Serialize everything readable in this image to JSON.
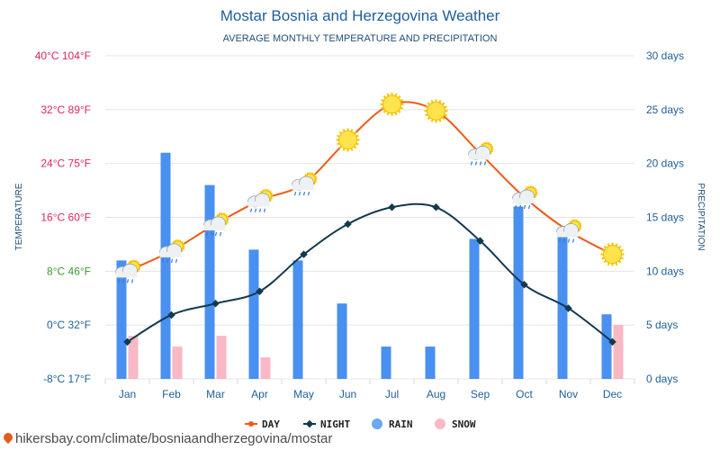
{
  "chart_data": {
    "type": "bar+line",
    "title": "Mostar Bosnia and Herzegovina Weather",
    "subtitle": "AVERAGE MONTHLY TEMPERATURE AND PRECIPITATION",
    "categories": [
      "Jan",
      "Feb",
      "Mar",
      "Apr",
      "May",
      "Jun",
      "Jul",
      "Aug",
      "Sep",
      "Oct",
      "Nov",
      "Dec"
    ],
    "left_axis": {
      "label": "TEMPERATURE",
      "range_c": [
        -8,
        40
      ],
      "ticks": [
        {
          "value": 40,
          "label": "40°C 104°F",
          "color": "#e0245e"
        },
        {
          "value": 32,
          "label": "32°C 89°F",
          "color": "#e0245e"
        },
        {
          "value": 24,
          "label": "24°C 75°F",
          "color": "#e0245e"
        },
        {
          "value": 16,
          "label": "16°C 60°F",
          "color": "#e0245e"
        },
        {
          "value": 8,
          "label": "8°C 46°F",
          "color": "#3a9a2c"
        },
        {
          "value": 0,
          "label": "0°C 32°F",
          "color": "#1f5f99"
        },
        {
          "value": -8,
          "label": "-8°C 17°F",
          "color": "#1f5f99"
        }
      ]
    },
    "right_axis": {
      "label": "PRECIPITATION",
      "range_days": [
        0,
        30
      ],
      "ticks": [
        {
          "value": 30,
          "label": "30 days"
        },
        {
          "value": 25,
          "label": "25 days"
        },
        {
          "value": 20,
          "label": "20 days"
        },
        {
          "value": 15,
          "label": "15 days"
        },
        {
          "value": 10,
          "label": "10 days"
        },
        {
          "value": 5,
          "label": "5 days"
        },
        {
          "value": 0,
          "label": "0 days"
        }
      ]
    },
    "series": [
      {
        "name": "DAY",
        "kind": "line",
        "axis": "left",
        "color": "#f05a14",
        "values": [
          8,
          11,
          15,
          18.5,
          21,
          27.5,
          32.8,
          31.8,
          25.5,
          19,
          14,
          10.5
        ]
      },
      {
        "name": "NIGHT",
        "kind": "line",
        "axis": "left",
        "color": "#12394f",
        "values": [
          -2.5,
          1.5,
          3.2,
          5,
          10.5,
          15,
          17.5,
          17.5,
          12.5,
          6,
          2.5,
          -2.5
        ]
      },
      {
        "name": "RAIN",
        "kind": "bar",
        "axis": "right",
        "color": "#4a90f0",
        "values": [
          11,
          21,
          18,
          12,
          11,
          7,
          3,
          3,
          13,
          16,
          14,
          6
        ]
      },
      {
        "name": "SNOW",
        "kind": "bar",
        "axis": "right",
        "color": "#f8b8c4",
        "values": [
          4,
          3,
          4,
          2,
          0,
          0,
          0,
          0,
          0,
          0,
          0,
          5
        ]
      }
    ],
    "weather_icons": [
      "cloud-rain-sun",
      "cloud-rain-sun",
      "cloud-rain-sun",
      "cloud-rain-sun",
      "cloud-rain-sun",
      "sun",
      "sun",
      "sun",
      "cloud-rain-sun",
      "cloud-rain-sun",
      "cloud-rain-sun",
      "sun"
    ],
    "legend": [
      {
        "label": "DAY",
        "kind": "line",
        "color": "#f05a14"
      },
      {
        "label": "NIGHT",
        "kind": "line",
        "color": "#12394f"
      },
      {
        "label": "RAIN",
        "kind": "dot",
        "color": "#6aa8f0"
      },
      {
        "label": "SNOW",
        "kind": "dot",
        "color": "#f8b8c4"
      }
    ],
    "legend_position": "bottom",
    "grid": true
  },
  "footer": {
    "icon": "map-pin-icon",
    "text": "hikersbay.com/climate/bosniaandherzegovina/mostar"
  }
}
